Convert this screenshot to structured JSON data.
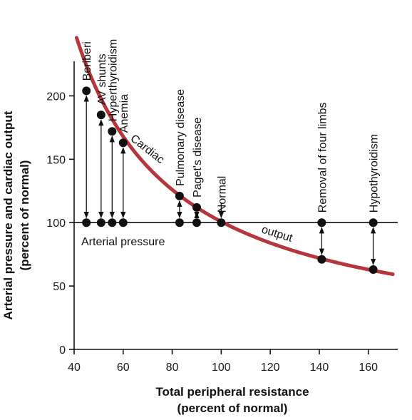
{
  "colors": {
    "curve": "#b5363c",
    "ink": "#111111"
  },
  "chart_data": {
    "type": "line",
    "xlabel_lines": [
      "Total peripheral resistance",
      "(percent of normal)"
    ],
    "ylabel_lines": [
      "Arterial pressure  and cardiac output",
      "(percent of normal)"
    ],
    "xlim": [
      40,
      172
    ],
    "ylim": [
      0,
      225
    ],
    "xticks": [
      40,
      60,
      80,
      100,
      120,
      140,
      160
    ],
    "yticks": [
      0,
      50,
      100,
      150,
      200
    ],
    "arterial_pressure": {
      "label": "Arterial pressure",
      "y": 100
    },
    "cardiac_output_curve": {
      "label_part1": "Cardiac",
      "label_part2": "output",
      "k": 10080,
      "x_start": 41,
      "x_end": 170
    },
    "conditions": [
      {
        "name": "Beriberi",
        "x": 45,
        "cardiac_output": 204
      },
      {
        "name": "AV shunts",
        "x": 51,
        "cardiac_output": 185
      },
      {
        "name": "Hyperthyroidism",
        "x": 55.5,
        "cardiac_output": 172
      },
      {
        "name": "Anemia",
        "x": 60,
        "cardiac_output": 163
      },
      {
        "name": "Pulmonary disease",
        "x": 83,
        "cardiac_output": 121
      },
      {
        "name": "Paget's disease",
        "x": 90,
        "cardiac_output": 112
      },
      {
        "name": "Normal",
        "x": 100,
        "cardiac_output": 100
      },
      {
        "name": "Removal of four limbs",
        "x": 141,
        "cardiac_output": 71
      },
      {
        "name": "Hypothyroidism",
        "x": 162,
        "cardiac_output": 63
      }
    ]
  }
}
